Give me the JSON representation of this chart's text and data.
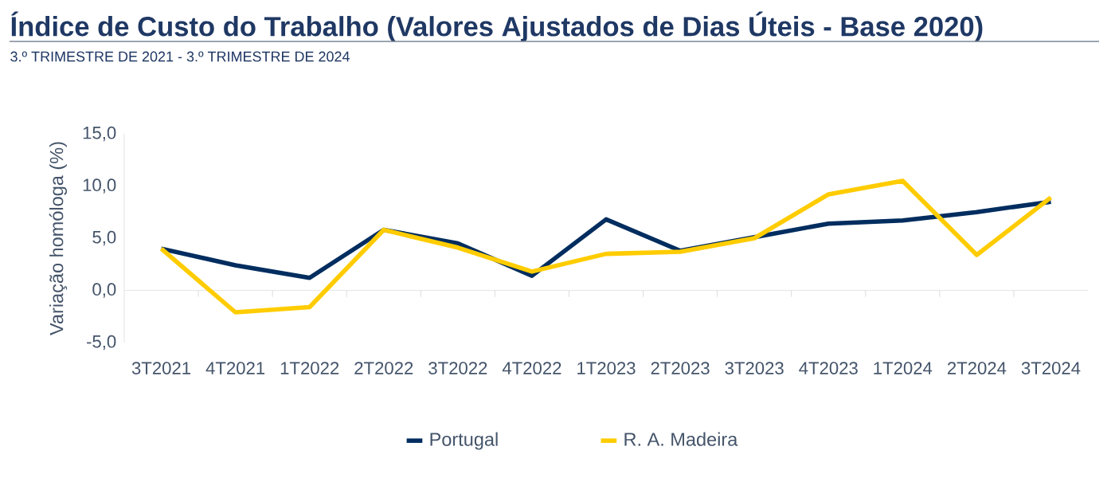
{
  "chart_data": {
    "type": "line",
    "title": "Índice de Custo do Trabalho (Valores Ajustados de Dias Úteis - Base 2020)",
    "subtitle": "3.º TRIMESTRE DE 2021 - 3.º TRIMESTRE DE 2024",
    "ylabel": "Variação homóloga (%)",
    "categories": [
      "3T2021",
      "4T2021",
      "1T2022",
      "2T2022",
      "3T2022",
      "4T2022",
      "1T2023",
      "2T2023",
      "3T2023",
      "4T2023",
      "1T2024",
      "2T2024",
      "3T2024"
    ],
    "series": [
      {
        "name": "Portugal",
        "color": "#002d5f",
        "values": [
          4.0,
          2.4,
          1.2,
          5.8,
          4.5,
          1.4,
          6.8,
          3.8,
          5.1,
          6.4,
          6.7,
          7.5,
          8.5
        ]
      },
      {
        "name": "R. A. Madeira",
        "color": "#ffcc00",
        "values": [
          4.0,
          -2.1,
          -1.6,
          5.8,
          4.1,
          1.8,
          3.5,
          3.7,
          5.0,
          9.2,
          10.5,
          3.4,
          8.9
        ]
      }
    ],
    "ylim": [
      -5,
      15
    ],
    "yticks": [
      {
        "value": -5,
        "label": "-5,0"
      },
      {
        "value": 0,
        "label": "0,0"
      },
      {
        "value": 5,
        "label": "5,0"
      },
      {
        "value": 10,
        "label": "10,0"
      },
      {
        "value": 15,
        "label": "15,0"
      }
    ],
    "legend": "bottom",
    "marker": "none",
    "line_style": "solid"
  }
}
